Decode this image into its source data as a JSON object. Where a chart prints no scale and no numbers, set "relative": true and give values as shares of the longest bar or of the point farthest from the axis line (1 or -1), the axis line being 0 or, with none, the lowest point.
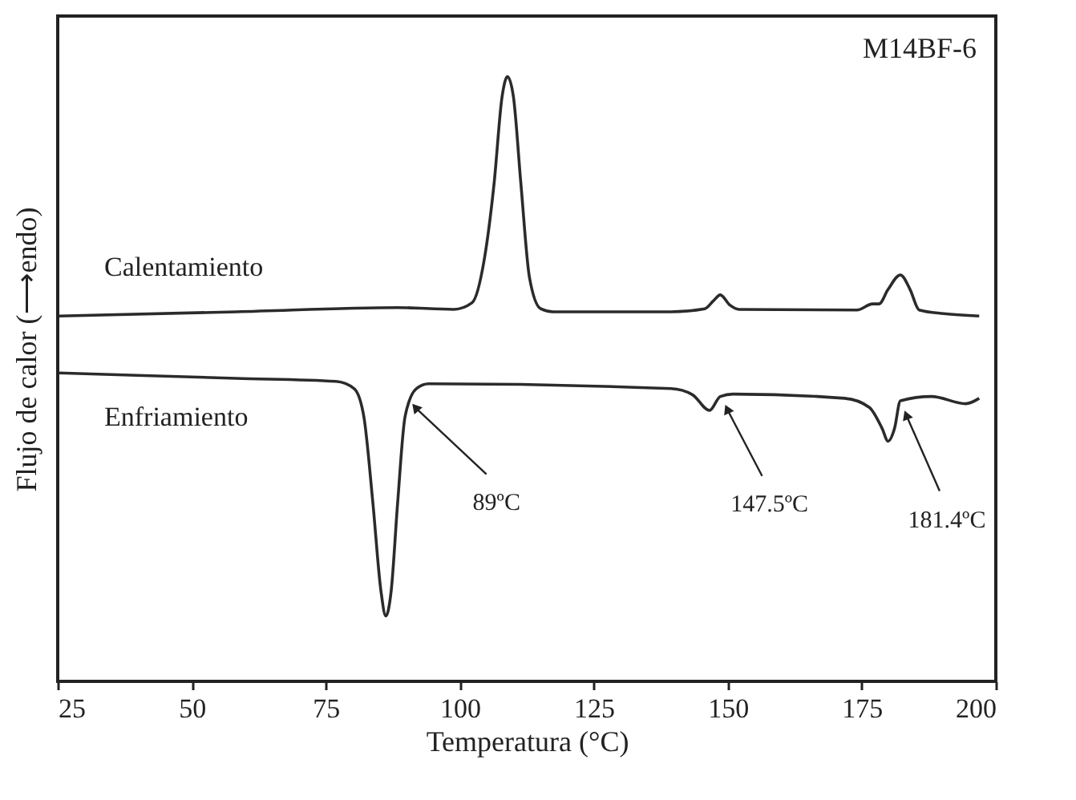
{
  "chart_data": {
    "type": "line",
    "relative": true,
    "xlabel": "Temperatura (°C)",
    "ylabel": "Flujo de calor (⟶endo)",
    "xlim": [
      25,
      200
    ],
    "xticks": [
      25,
      50,
      75,
      100,
      125,
      150,
      175,
      200
    ],
    "grid": false,
    "tick_labels": "x",
    "marker": "none",
    "line_style": "solid",
    "annotations": [
      "M14BF-6",
      {
        "text": "89ºC",
        "x": 91.9,
        "y": 0.451
      },
      {
        "text": "147.5ºC",
        "x": 150,
        "y": 0.448
      },
      {
        "text": "181.4ºC",
        "x": 183.4,
        "y": 0.438
      }
    ],
    "series": [
      {
        "name": "Calentamiento",
        "color": "#2b2b2b",
        "x": [
          25.3,
          58.3,
          88.4,
          98.9,
          102.3,
          104.6,
          106.4,
          107.9,
          108.9,
          110,
          111.4,
          113,
          115.1,
          117.4,
          139.4,
          145.7,
          147.3,
          148.6,
          150.4,
          152.1,
          174.1,
          177,
          178.2,
          179.9,
          182.2,
          184,
          185.7,
          190.3,
          196.9
        ],
        "values": [
          0.604,
          0.611,
          0.618,
          0.615,
          0.626,
          0.699,
          0.823,
          0.967,
          1.0,
          0.967,
          0.823,
          0.668,
          0.616,
          0.611,
          0.611,
          0.616,
          0.629,
          0.639,
          0.622,
          0.615,
          0.614,
          0.624,
          0.624,
          0.648,
          0.672,
          0.648,
          0.614,
          0.608,
          0.604
        ]
      },
      {
        "name": "Enfriamiento",
        "color": "#2b2b2b",
        "x": [
          25.3,
          58.3,
          76.9,
          80.3,
          82.1,
          83.8,
          85.3,
          86.2,
          87.2,
          88.4,
          89.8,
          91.9,
          94.2,
          139.4,
          143.4,
          146.6,
          148.6,
          151,
          171.8,
          176.4,
          178.8,
          179.9,
          181.1,
          182.2,
          188,
          194.4,
          196.9
        ],
        "values": [
          0.51,
          0.501,
          0.496,
          0.484,
          0.438,
          0.294,
          0.149,
          0.108,
          0.149,
          0.294,
          0.438,
          0.484,
          0.492,
          0.484,
          0.474,
          0.448,
          0.471,
          0.475,
          0.468,
          0.453,
          0.418,
          0.397,
          0.418,
          0.464,
          0.471,
          0.459,
          0.468
        ]
      }
    ]
  }
}
